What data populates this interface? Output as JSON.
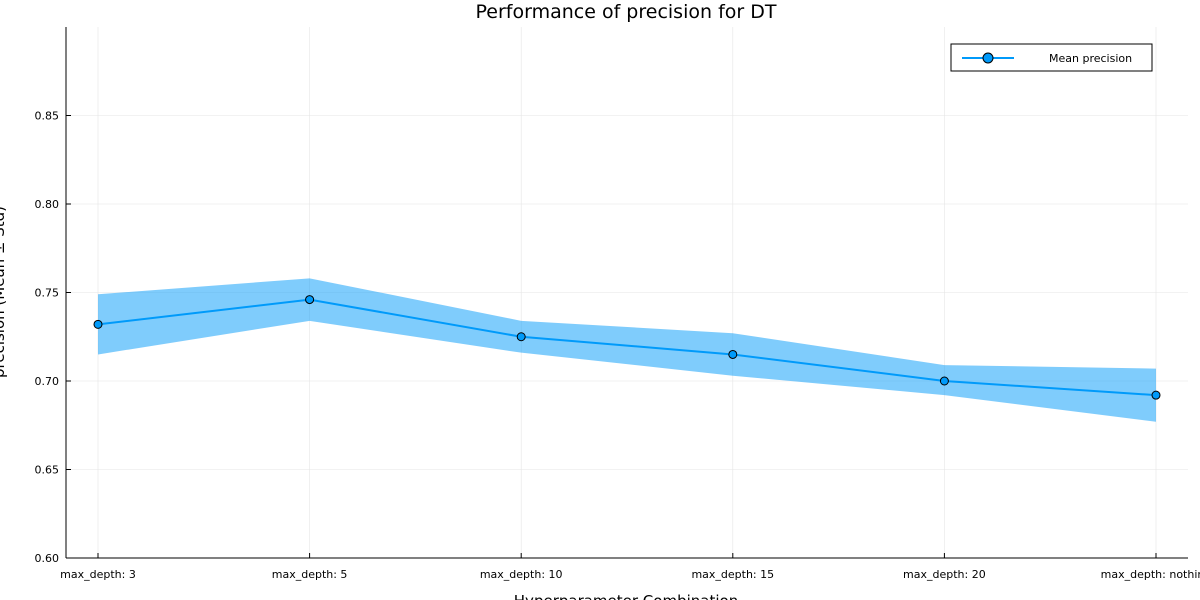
{
  "chart_data": {
    "type": "line",
    "title": "Performance of precision for DT",
    "xlabel": "Hyperparameter Combination",
    "ylabel": "precision (Mean ± Std)",
    "categories": [
      "max_depth: 3",
      "max_depth: 5",
      "max_depth: 10",
      "max_depth: 15",
      "max_depth: 20",
      "max_depth: nothing"
    ],
    "series": [
      {
        "name": "Mean precision",
        "values": [
          0.732,
          0.746,
          0.725,
          0.715,
          0.7,
          0.692
        ],
        "upper": [
          0.749,
          0.758,
          0.734,
          0.727,
          0.709,
          0.707
        ],
        "lower": [
          0.715,
          0.734,
          0.716,
          0.703,
          0.692,
          0.677
        ]
      }
    ],
    "yticks": [
      0.6,
      0.65,
      0.7,
      0.75,
      0.8,
      0.85
    ],
    "ylim": [
      0.6,
      0.9
    ],
    "grid": true,
    "legend_position": "top-right",
    "colors": {
      "line": "#009AFA",
      "band": "#009AFA",
      "marker_edge": "#000000",
      "axis": "#000000",
      "grid": "#E5E5E5"
    }
  }
}
